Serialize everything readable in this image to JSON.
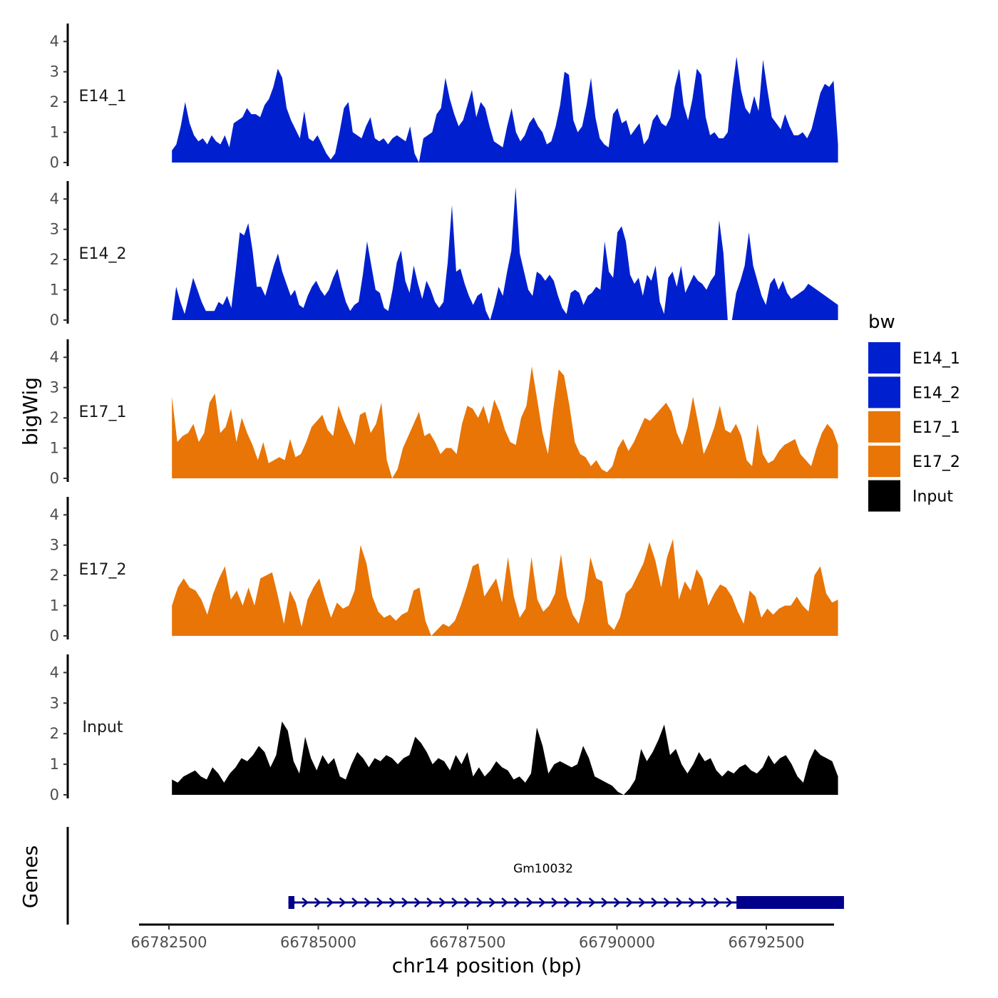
{
  "chart_data": {
    "type": "area",
    "ylabel": "bigWig",
    "xlabel": "chr14 position (bp)",
    "genes_label": "Genes",
    "xlim": [
      66782500,
      66793700
    ],
    "x_ticks": [
      66782500,
      66785000,
      66787500,
      66790000,
      66792500
    ],
    "x_tick_labels": [
      "66782500",
      "66785000",
      "66787500",
      "66790000",
      "66792500"
    ],
    "ylim": [
      0,
      4.5
    ],
    "y_ticks": [
      0,
      1,
      2,
      3,
      4
    ],
    "y_tick_labels": [
      "0",
      "1",
      "2",
      "3",
      "4"
    ],
    "legend": {
      "title": "bw",
      "entries": [
        {
          "label": "E14_1",
          "color": "#0020D0"
        },
        {
          "label": "E14_2",
          "color": "#0020D0"
        },
        {
          "label": "E17_1",
          "color": "#E87506"
        },
        {
          "label": "E17_2",
          "color": "#E87506"
        },
        {
          "label": "Input",
          "color": "#000000"
        }
      ]
    },
    "series": [
      {
        "name": "E14_1",
        "color": "#0020D0",
        "x_start": 66782550,
        "x_end": 66793700,
        "values": [
          0.4,
          0.6,
          1.2,
          2.0,
          1.3,
          0.9,
          0.7,
          0.8,
          0.6,
          0.9,
          0.7,
          0.6,
          0.9,
          0.5,
          1.3,
          1.4,
          1.5,
          1.8,
          1.6,
          1.6,
          1.5,
          1.9,
          2.1,
          2.5,
          3.1,
          2.8,
          1.8,
          1.4,
          1.1,
          0.8,
          1.7,
          0.8,
          0.7,
          0.9,
          0.6,
          0.3,
          0.1,
          0.3,
          1.0,
          1.8,
          2.0,
          1.0,
          0.9,
          0.8,
          1.2,
          1.5,
          0.8,
          0.7,
          0.8,
          0.6,
          0.8,
          0.9,
          0.8,
          0.7,
          1.2,
          0.3,
          0.0,
          0.8,
          0.9,
          1.0,
          1.6,
          1.8,
          2.8,
          2.1,
          1.6,
          1.2,
          1.4,
          1.9,
          2.4,
          1.5,
          2.0,
          1.8,
          1.2,
          0.7,
          0.6,
          0.5,
          1.2,
          1.8,
          1.0,
          0.7,
          0.9,
          1.3,
          1.5,
          1.2,
          1.0,
          0.6,
          0.7,
          1.2,
          1.9,
          3.0,
          2.9,
          1.4,
          1.0,
          1.2,
          1.9,
          2.8,
          1.5,
          0.8,
          0.6,
          0.5,
          1.6,
          1.8,
          1.3,
          1.4,
          0.9,
          1.1,
          1.3,
          0.6,
          0.8,
          1.4,
          1.6,
          1.3,
          1.2,
          1.5,
          2.5,
          3.1,
          1.9,
          1.4,
          2.1,
          3.1,
          2.9,
          1.5,
          0.9,
          1.0,
          0.8,
          0.8,
          1.0,
          2.4,
          3.5,
          2.4,
          1.8,
          1.6,
          2.2,
          1.7,
          3.4,
          2.4,
          1.5,
          1.3,
          1.1,
          1.6,
          1.2,
          0.9,
          0.9,
          1.0,
          0.8,
          1.1,
          1.7,
          2.3,
          2.6,
          2.5,
          2.7,
          0.6
        ]
      },
      {
        "name": "E14_2",
        "color": "#0020D0",
        "x_start": 66782550,
        "x_end": 66793700,
        "values": [
          0.0,
          1.1,
          0.6,
          0.2,
          0.8,
          1.4,
          1.0,
          0.6,
          0.3,
          0.3,
          0.3,
          0.6,
          0.5,
          0.8,
          0.4,
          1.6,
          2.9,
          2.8,
          3.2,
          2.3,
          1.1,
          1.1,
          0.8,
          1.3,
          1.8,
          2.2,
          1.6,
          1.2,
          0.8,
          1.0,
          0.5,
          0.4,
          0.8,
          1.1,
          1.3,
          1.0,
          0.8,
          1.0,
          1.4,
          1.7,
          1.1,
          0.6,
          0.3,
          0.5,
          0.6,
          1.5,
          2.6,
          1.8,
          1.0,
          0.9,
          0.4,
          0.3,
          1.0,
          1.9,
          2.3,
          1.3,
          0.9,
          1.8,
          1.2,
          0.7,
          1.3,
          1.0,
          0.6,
          0.4,
          0.6,
          1.9,
          3.8,
          1.6,
          1.7,
          1.2,
          0.8,
          0.5,
          0.8,
          0.9,
          0.3,
          0.0,
          0.5,
          1.1,
          0.8,
          1.6,
          2.3,
          4.4,
          2.2,
          1.6,
          1.0,
          0.8,
          1.6,
          1.5,
          1.3,
          1.5,
          1.3,
          0.8,
          0.4,
          0.2,
          0.9,
          1.0,
          0.9,
          0.5,
          0.8,
          0.9,
          1.1,
          1.0,
          2.6,
          1.6,
          1.4,
          2.9,
          3.1,
          2.6,
          1.5,
          1.2,
          1.4,
          0.8,
          1.5,
          1.3,
          1.8,
          0.6,
          0.2,
          1.4,
          1.6,
          1.1,
          1.8,
          0.9,
          1.2,
          1.5,
          1.3,
          1.2,
          1.0,
          1.3,
          1.5,
          3.3,
          2.2,
          0.0,
          0.0,
          0.9,
          1.3,
          1.8,
          2.9,
          1.8,
          1.3,
          0.8,
          0.5,
          1.2,
          1.4,
          1.0,
          1.3,
          0.9,
          0.7,
          0.8,
          0.9,
          1.0,
          1.2,
          1.1,
          1.0,
          0.9,
          0.8,
          0.7,
          0.6,
          0.5
        ]
      },
      {
        "name": "E17_1",
        "color": "#E87506",
        "x_start": 66782550,
        "x_end": 66793700,
        "values": [
          2.7,
          1.2,
          1.4,
          1.5,
          1.8,
          1.2,
          1.5,
          2.5,
          2.8,
          1.5,
          1.7,
          2.3,
          1.2,
          2.0,
          1.5,
          1.1,
          0.6,
          1.2,
          0.5,
          0.6,
          0.7,
          0.6,
          1.3,
          0.7,
          0.8,
          1.2,
          1.7,
          1.9,
          2.1,
          1.6,
          1.4,
          2.4,
          1.9,
          1.5,
          1.1,
          2.1,
          2.2,
          1.5,
          1.8,
          2.5,
          0.6,
          0.0,
          0.3,
          1.0,
          1.4,
          1.8,
          2.2,
          1.4,
          1.5,
          1.2,
          0.8,
          1.0,
          1.0,
          0.8,
          1.8,
          2.4,
          2.3,
          2.0,
          2.4,
          1.8,
          2.6,
          2.2,
          1.6,
          1.2,
          1.1,
          2.0,
          2.4,
          3.7,
          2.6,
          1.5,
          0.8,
          2.3,
          3.6,
          3.4,
          2.4,
          1.2,
          0.8,
          0.7,
          0.4,
          0.6,
          0.3,
          0.2,
          0.4,
          1.0,
          1.3,
          0.9,
          1.2,
          1.6,
          2.0,
          1.9,
          2.1,
          2.3,
          2.5,
          2.2,
          1.5,
          1.1,
          1.7,
          2.7,
          1.8,
          0.8,
          1.2,
          1.7,
          2.4,
          1.6,
          1.5,
          1.8,
          1.4,
          0.6,
          0.4,
          1.8,
          0.8,
          0.5,
          0.6,
          0.9,
          1.1,
          1.2,
          1.3,
          0.8,
          0.6,
          0.4,
          1.0,
          1.5,
          1.8,
          1.6,
          1.1
        ]
      },
      {
        "name": "E17_2",
        "color": "#E87506",
        "x_start": 66782550,
        "x_end": 66793700,
        "values": [
          1.0,
          1.6,
          1.9,
          1.6,
          1.5,
          1.2,
          0.7,
          1.4,
          1.9,
          2.3,
          1.2,
          1.5,
          1.0,
          1.6,
          1.0,
          1.9,
          2.0,
          2.1,
          1.3,
          0.4,
          1.5,
          1.1,
          0.3,
          1.2,
          1.6,
          1.9,
          1.2,
          0.6,
          1.1,
          0.9,
          1.0,
          1.5,
          3.0,
          2.4,
          1.3,
          0.8,
          0.6,
          0.7,
          0.5,
          0.7,
          0.8,
          1.5,
          1.6,
          0.5,
          0.0,
          0.2,
          0.4,
          0.3,
          0.5,
          1.0,
          1.6,
          2.3,
          2.4,
          1.3,
          1.6,
          1.9,
          1.1,
          2.6,
          1.3,
          0.6,
          0.9,
          2.6,
          1.2,
          0.8,
          1.0,
          1.4,
          2.7,
          1.3,
          0.7,
          0.4,
          1.2,
          2.6,
          1.9,
          1.8,
          0.4,
          0.2,
          0.6,
          1.4,
          1.6,
          2.0,
          2.4,
          3.1,
          2.5,
          1.6,
          2.6,
          3.2,
          1.2,
          1.8,
          1.5,
          2.2,
          1.9,
          1.0,
          1.4,
          1.7,
          1.6,
          1.3,
          0.8,
          0.4,
          1.5,
          1.3,
          0.6,
          0.9,
          0.7,
          0.9,
          1.0,
          1.0,
          1.3,
          1.0,
          0.8,
          2.0,
          2.3,
          1.4,
          1.1,
          1.2
        ]
      },
      {
        "name": "Input",
        "color": "#000000",
        "x_start": 66782550,
        "x_end": 66793700,
        "values": [
          0.5,
          0.4,
          0.6,
          0.7,
          0.8,
          0.6,
          0.5,
          0.9,
          0.7,
          0.4,
          0.7,
          0.9,
          1.2,
          1.1,
          1.3,
          1.6,
          1.4,
          0.9,
          1.3,
          2.4,
          2.1,
          1.1,
          0.7,
          1.9,
          1.2,
          0.8,
          1.3,
          1.0,
          1.2,
          0.6,
          0.5,
          1.0,
          1.4,
          1.2,
          0.9,
          1.2,
          1.1,
          1.3,
          1.2,
          1.0,
          1.2,
          1.3,
          1.9,
          1.7,
          1.4,
          1.0,
          1.2,
          1.1,
          0.8,
          1.3,
          1.0,
          1.4,
          0.6,
          0.9,
          0.6,
          0.8,
          1.1,
          0.9,
          0.8,
          0.5,
          0.6,
          0.4,
          0.7,
          2.2,
          1.6,
          0.7,
          1.0,
          1.1,
          1.0,
          0.9,
          1.0,
          1.6,
          1.2,
          0.6,
          0.5,
          0.4,
          0.3,
          0.1,
          0.0,
          0.2,
          0.5,
          1.5,
          1.1,
          1.4,
          1.8,
          2.3,
          1.3,
          1.5,
          1.0,
          0.7,
          1.0,
          1.4,
          1.1,
          1.2,
          0.8,
          0.6,
          0.8,
          0.7,
          0.9,
          1.0,
          0.8,
          0.7,
          0.9,
          1.3,
          1.0,
          1.2,
          1.3,
          1.0,
          0.6,
          0.4,
          1.1,
          1.5,
          1.3,
          1.2,
          1.1,
          0.6
        ]
      }
    ],
    "gene_track": {
      "gene_name": "Gm10032",
      "color": "#00008B",
      "strand": "+",
      "start": 66784500,
      "end": 66793800,
      "exons": [
        [
          66784500,
          66784600
        ],
        [
          66792000,
          66793800
        ]
      ]
    }
  }
}
